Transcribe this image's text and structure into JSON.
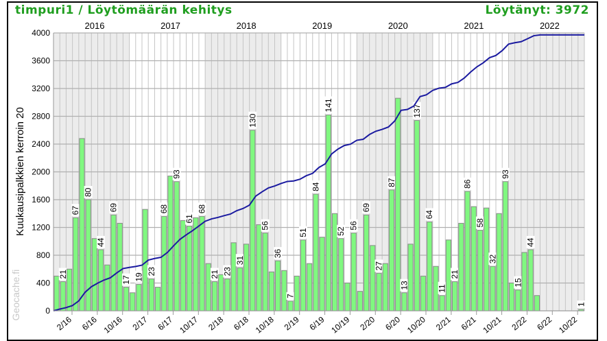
{
  "header": {
    "title": "timpuri1 / Löytömäärän kehitys",
    "found": "Löytänyt: 3972"
  },
  "watermark": "Geocache.fi",
  "colors": {
    "title": "#1f9e1f",
    "bar": "#80f880",
    "bar_border": "#8a8a8a",
    "line": "#1a1aa0",
    "shade": "#ececec"
  },
  "chart_data": {
    "type": "bar",
    "ylabel": "Kuukausipalkkien kerroin 20",
    "bar_multiplier": 20,
    "ylim": [
      0,
      4000
    ],
    "yticks": [
      0,
      400,
      800,
      1200,
      1600,
      2000,
      2400,
      2800,
      3200,
      3600,
      4000
    ],
    "grid": true,
    "years": [
      "2016",
      "2017",
      "2018",
      "2019",
      "2020",
      "2021",
      "2022"
    ],
    "xtick_labels": [
      "2/16",
      "6/16",
      "10/16",
      "2/17",
      "6/17",
      "10/17",
      "2/18",
      "6/18",
      "10/18",
      "2/19",
      "6/19",
      "10/19",
      "2/20",
      "6/20",
      "10/20",
      "2/21",
      "6/21",
      "10/21",
      "2/22",
      "6/22",
      "10/22"
    ],
    "series": [
      {
        "type": "bar",
        "values": [
          25,
          21,
          30,
          67,
          124,
          80,
          52,
          44,
          33,
          69,
          63,
          17,
          13,
          19,
          73,
          23,
          17,
          68,
          97,
          93,
          65,
          61,
          67,
          68,
          34,
          21,
          26,
          23,
          49,
          31,
          48,
          130,
          62,
          56,
          28,
          36,
          29,
          7,
          25,
          51,
          34,
          84,
          53,
          141,
          70,
          52,
          20,
          56,
          14,
          69,
          47,
          27,
          34,
          87,
          153,
          13,
          48,
          137,
          25,
          64,
          32,
          11,
          51,
          21,
          63,
          86,
          75,
          58,
          74,
          32,
          70,
          93,
          20,
          15,
          42,
          44,
          11,
          0,
          0,
          0,
          0,
          0,
          0,
          1
        ]
      },
      {
        "type": "line",
        "cumulative": true,
        "final_value": 3972
      }
    ],
    "data_labels": [
      null,
      "21",
      null,
      "67",
      null,
      "80",
      null,
      "44",
      null,
      "69",
      null,
      "17",
      null,
      "19",
      null,
      "23",
      null,
      "68",
      null,
      "93",
      null,
      "61",
      null,
      "68",
      null,
      "21",
      null,
      "23",
      null,
      "31",
      null,
      "130",
      null,
      "56",
      null,
      "36",
      null,
      "7",
      null,
      "51",
      null,
      "84",
      null,
      "141",
      null,
      "52",
      null,
      "56",
      null,
      "69",
      null,
      "27",
      null,
      "87",
      null,
      "13",
      null,
      "137",
      null,
      "64",
      null,
      "11",
      null,
      "21",
      null,
      "86",
      null,
      "58",
      null,
      "32",
      null,
      "93",
      null,
      "15",
      null,
      "44",
      null,
      null,
      null,
      null,
      null,
      null,
      null,
      "1"
    ]
  }
}
